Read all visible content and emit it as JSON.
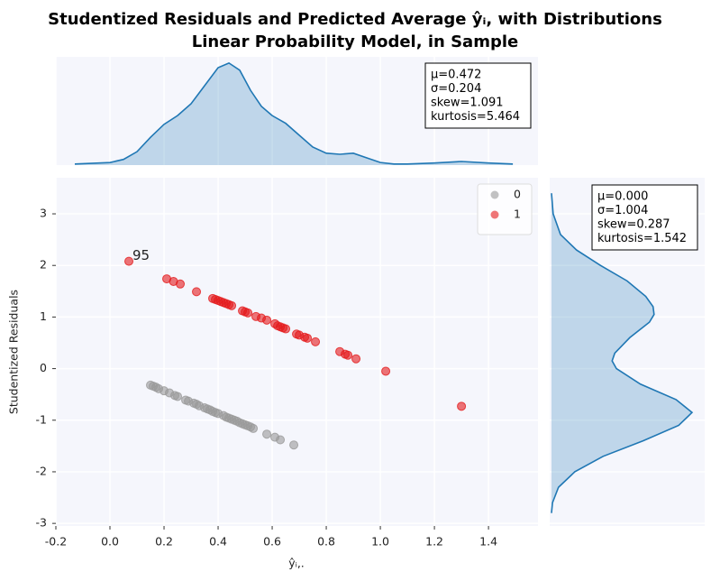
{
  "chart_data": [
    {
      "type": "scatter",
      "title": [
        "Studentized Residuals and Predicted Average ŷᵢ, with Distributions",
        "Linear Probability Model, in Sample"
      ],
      "xlabel": "ŷᵢ,.",
      "ylabel": "Studentized Residuals",
      "xlim": [
        -0.2,
        1.583
      ],
      "ylim": [
        -3.05,
        3.7
      ],
      "xticks": [
        -0.2,
        {
          "value": 0,
          "label": "0.0"
        },
        0.2,
        0.4,
        0.6,
        0.8,
        {
          "value": 1,
          "label": "1.0"
        },
        1.2,
        1.4
      ],
      "yticks": [
        -3,
        -2,
        -1,
        0,
        1,
        2,
        3
      ],
      "grid": true,
      "legend": "upper right",
      "series": [
        {
          "name": "0",
          "color": "#999999",
          "x": [
            0.15,
            0.16,
            0.17,
            0.18,
            0.2,
            0.22,
            0.24,
            0.25,
            0.28,
            0.29,
            0.31,
            0.32,
            0.33,
            0.35,
            0.36,
            0.37,
            0.38,
            0.39,
            0.4,
            0.42,
            0.43,
            0.44,
            0.45,
            0.46,
            0.47,
            0.48,
            0.49,
            0.5,
            0.51,
            0.52,
            0.53,
            0.58,
            0.61,
            0.63,
            0.68
          ],
          "values": [
            -0.32,
            -0.34,
            -0.36,
            -0.39,
            -0.43,
            -0.47,
            -0.52,
            -0.54,
            -0.61,
            -0.63,
            -0.67,
            -0.69,
            -0.72,
            -0.76,
            -0.78,
            -0.8,
            -0.83,
            -0.85,
            -0.87,
            -0.91,
            -0.94,
            -0.96,
            -0.98,
            -1.0,
            -1.02,
            -1.05,
            -1.07,
            -1.09,
            -1.11,
            -1.13,
            -1.16,
            -1.27,
            -1.33,
            -1.38,
            -1.48
          ]
        },
        {
          "name": "1",
          "color": "#e41a1c",
          "x": [
            0.07,
            0.21,
            0.235,
            0.26,
            0.32,
            0.38,
            0.39,
            0.4,
            0.41,
            0.42,
            0.43,
            0.44,
            0.45,
            0.49,
            0.5,
            0.51,
            0.54,
            0.56,
            0.58,
            0.61,
            0.62,
            0.63,
            0.64,
            0.65,
            0.69,
            0.7,
            0.72,
            0.73,
            0.76,
            0.85,
            0.87,
            0.88,
            0.91,
            1.02,
            1.3
          ],
          "values": [
            2.08,
            1.74,
            1.69,
            1.64,
            1.49,
            1.36,
            1.34,
            1.32,
            1.3,
            1.28,
            1.26,
            1.24,
            1.22,
            1.12,
            1.1,
            1.08,
            1.01,
            0.98,
            0.94,
            0.87,
            0.83,
            0.81,
            0.79,
            0.77,
            0.67,
            0.65,
            0.61,
            0.59,
            0.52,
            0.33,
            0.28,
            0.26,
            0.19,
            -0.05,
            -0.73
          ]
        }
      ],
      "annotations": [
        {
          "text": "95",
          "x": 0.07,
          "y": 2.08
        }
      ]
    },
    {
      "type": "area",
      "color": "#1f77b4",
      "xlim": [
        -0.2,
        1.583
      ],
      "ylim": [
        0,
        2.1
      ],
      "x": [
        -0.13,
        0,
        0.05,
        0.1,
        0.15,
        0.2,
        0.25,
        0.3,
        0.35,
        0.4,
        0.44,
        0.48,
        0.52,
        0.56,
        0.6,
        0.65,
        0.7,
        0.75,
        0.8,
        0.85,
        0.9,
        0.95,
        1.0,
        1.05,
        1.1,
        1.2,
        1.3,
        1.4,
        1.49
      ],
      "values": [
        0.02,
        0.05,
        0.11,
        0.26,
        0.54,
        0.79,
        0.96,
        1.19,
        1.54,
        1.89,
        1.98,
        1.84,
        1.45,
        1.14,
        0.96,
        0.81,
        0.58,
        0.35,
        0.23,
        0.21,
        0.23,
        0.14,
        0.05,
        0.02,
        0.02,
        0.04,
        0.07,
        0.04,
        0.02
      ],
      "stats": [
        "μ=0.472",
        "σ=0.204",
        "skew=1.091",
        "kurtosis=5.464"
      ]
    },
    {
      "type": "area-horizontal",
      "color": "#1f77b4",
      "xlim": [
        0,
        0.46
      ],
      "ylim": [
        -3.05,
        3.7
      ],
      "y": [
        3.4,
        3.0,
        2.6,
        2.3,
        2.0,
        1.7,
        1.4,
        1.2,
        1.05,
        0.9,
        0.6,
        0.3,
        0.15,
        0.0,
        -0.3,
        -0.6,
        -0.85,
        -1.1,
        -1.4,
        -1.7,
        -2.0,
        -2.3,
        -2.6,
        -2.8
      ],
      "values": [
        0,
        0.005,
        0.027,
        0.075,
        0.147,
        0.227,
        0.283,
        0.305,
        0.308,
        0.294,
        0.235,
        0.19,
        0.182,
        0.195,
        0.267,
        0.374,
        0.422,
        0.382,
        0.275,
        0.155,
        0.07,
        0.021,
        0.003,
        0
      ],
      "stats": [
        "μ=0.000",
        "σ=1.004",
        "skew=0.287",
        "kurtosis=1.542"
      ]
    }
  ]
}
